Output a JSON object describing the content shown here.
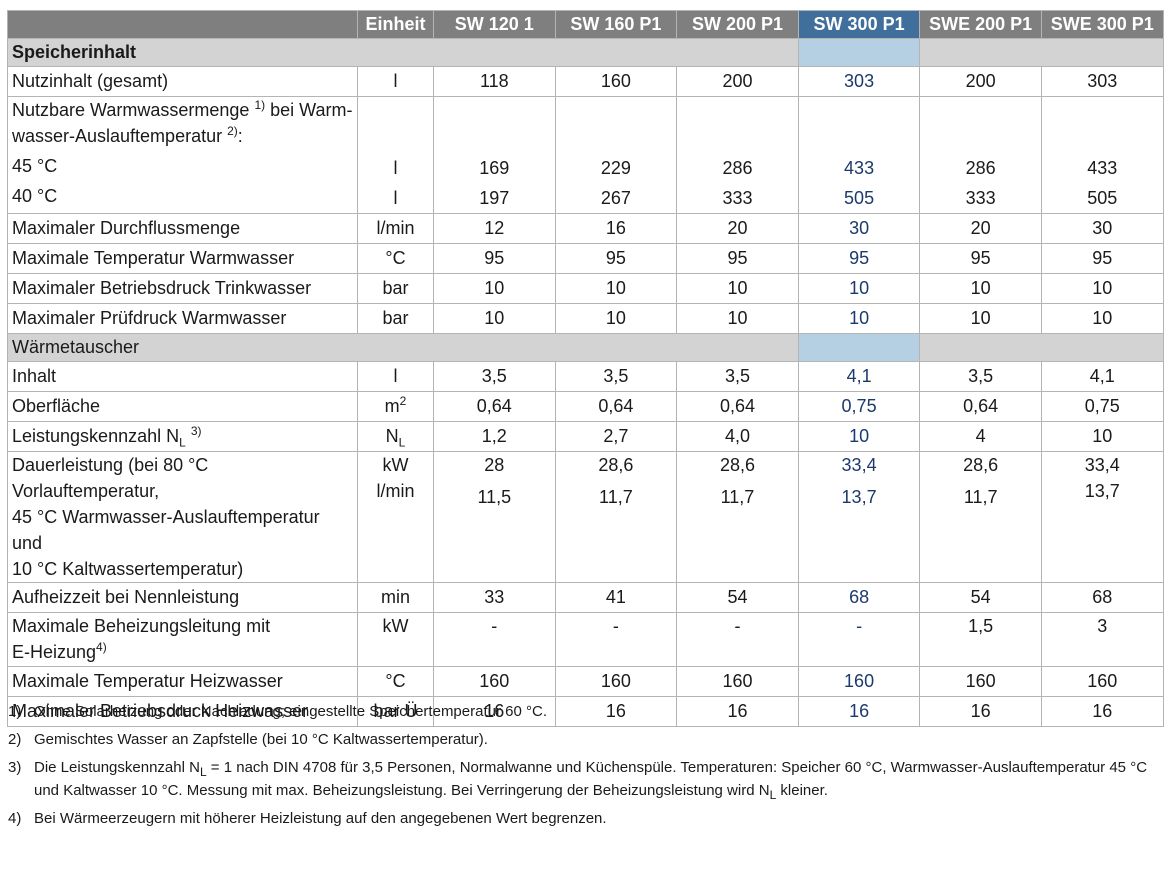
{
  "header": {
    "unit": "Einheit",
    "models": [
      "SW 120 1",
      "SW 160 P1",
      "SW 200 P1",
      "SW 300 P1",
      "SWE 200 P1",
      "SWE 300 P1"
    ]
  },
  "sections": {
    "storage": "Speicherinhalt",
    "exchanger": "Wärmetauscher"
  },
  "rows": {
    "nutzinhalt": {
      "label": "Nutzinhalt (gesamt)",
      "unit": "l",
      "values": [
        "118",
        "160",
        "200",
        "303",
        "200",
        "303"
      ]
    },
    "warmwasser": {
      "label_a": "Nutzbare Warmwassermenge",
      "label_a_sup": "1)",
      "label_b": " bei Warm-",
      "label_c": "wasser-Auslauftemperatur",
      "label_c_sup": "2)",
      "label_d": ":",
      "sub1": "45 °C",
      "sub2": "40 °C",
      "unit1": "l",
      "unit2": "l",
      "values45": [
        "169",
        "229",
        "286",
        "433",
        "286",
        "433"
      ],
      "values40": [
        "197",
        "267",
        "333",
        "505",
        "333",
        "505"
      ]
    },
    "durchfluss": {
      "label": "Maximaler Durchflussmenge",
      "unit": "l/min",
      "values": [
        "12",
        "16",
        "20",
        "30",
        "20",
        "30"
      ]
    },
    "temp_ww": {
      "label": "Maximale Temperatur Warmwasser",
      "unit": "°C",
      "values": [
        "95",
        "95",
        "95",
        "95",
        "95",
        "95"
      ]
    },
    "druck_tw": {
      "label": "Maximaler Betriebsdruck Trinkwasser",
      "unit": "bar",
      "values": [
        "10",
        "10",
        "10",
        "10",
        "10",
        "10"
      ]
    },
    "pruefdruck": {
      "label": "Maximaler Prüfdruck Warmwasser",
      "unit": "bar",
      "values": [
        "10",
        "10",
        "10",
        "10",
        "10",
        "10"
      ]
    },
    "inhalt": {
      "label": "Inhalt",
      "unit": "l",
      "values": [
        "3,5",
        "3,5",
        "3,5",
        "4,1",
        "3,5",
        "4,1"
      ]
    },
    "oberflaeche": {
      "label": "Oberfläche",
      "unit": "m",
      "unit_sup": "2",
      "values": [
        "0,64",
        "0,64",
        "0,64",
        "0,75",
        "0,64",
        "0,75"
      ]
    },
    "nl": {
      "label": "Leistungskennzahl N",
      "label_sub": "L",
      "label_sup": "3)",
      "unit": "N",
      "unit_sub": "L",
      "values": [
        "1,2",
        "2,7",
        "4,0",
        "10",
        "4",
        "10"
      ]
    },
    "dauer": {
      "line1": "Dauerleistung (bei 80 °C Vorlauftemperatur,",
      "line2": "45 °C Warmwasser-Auslauftemperatur und",
      "line3": "10 °C Kaltwassertemperatur)",
      "unit1": "kW",
      "unit2": "l/min",
      "kw": [
        "28",
        "28,6",
        "28,6",
        "33,4",
        "28,6",
        "33,4"
      ],
      "lmin": [
        "11,5",
        "11,7",
        "11,7",
        "13,7",
        "11,7",
        "13,7"
      ]
    },
    "aufheiz": {
      "label": "Aufheizzeit bei Nennleistung",
      "unit": "min",
      "values": [
        "33",
        "41",
        "54",
        "68",
        "54",
        "68"
      ]
    },
    "eheiz": {
      "line1": "Maximale Beheizungsleitung mit",
      "line2": "E-Heizung",
      "line2_sup": "4)",
      "unit": "kW",
      "values": [
        "-",
        "-",
        "-",
        "-",
        "1,5",
        "3"
      ]
    },
    "temp_hw": {
      "label": "Maximale Temperatur Heizwasser",
      "unit": "°C",
      "values": [
        "160",
        "160",
        "160",
        "160",
        "160",
        "160"
      ]
    },
    "druck_hw": {
      "label": "Maximaler Betriebsdruck Heizwasser",
      "unit": "bar Ü",
      "values": [
        "16",
        "16",
        "16",
        "16",
        "16",
        "16"
      ]
    }
  },
  "footnotes": {
    "f1": {
      "num": "1)",
      "text": "Ohne Solarheizung oder Nachladung; eingestellte Speichertemperatur 60 °C."
    },
    "f2": {
      "num": "2)",
      "text": "Gemischtes Wasser an Zapfstelle (bei 10 °C Kaltwassertemperatur)."
    },
    "f3": {
      "num": "3)",
      "a": "Die Leistungskennzahl N",
      "a_sub": "L",
      "b": " = 1 nach DIN 4708 für 3,5 Personen, Normalwanne und Küchenspüle. Temperaturen: Speicher 60 °C, Warmwasser-Auslauftemperatur 45 °C und Kaltwasser 10 °C. Messung mit max. Beheizungsleistung. Bei Verringerung der Beheizungsleistung wird N",
      "b_sub": "L",
      "c": " kleiner."
    },
    "f4": {
      "num": "4)",
      "text": "Bei Wärmeerzeugern mit höherer Heizleistung auf den angegebenen Wert begrenzen."
    }
  },
  "colors": {
    "header_bg": "#7f7f7f",
    "header_highlight": "#3f6f9a",
    "section_bg": "#d3d3d3",
    "section_highlight": "#b5cfe3",
    "highlight_text": "#1b3a6b"
  }
}
